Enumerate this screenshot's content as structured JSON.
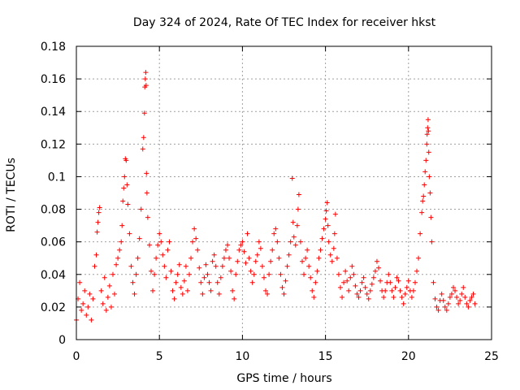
{
  "chart_data": {
    "type": "scatter",
    "title": "Day 324 of 2024, Rate Of TEC Index for receiver hkst",
    "xlabel": "GPS time / hours",
    "ylabel": "ROTI / TECUs",
    "xlim": [
      0,
      25
    ],
    "ylim": [
      0,
      0.18
    ],
    "x_ticks": [
      "0",
      "5",
      "10",
      "15",
      "20",
      "25"
    ],
    "y_ticks": [
      "0",
      "0.02",
      "0.04",
      "0.06",
      "0.08",
      "0.1",
      "0.12",
      "0.14",
      "0.16",
      "0.18"
    ],
    "grid": true,
    "marker": "+",
    "color": "#ff0000",
    "series": [
      {
        "points": [
          [
            0.0,
            0.012
          ],
          [
            0.1,
            0.025
          ],
          [
            0.2,
            0.035
          ],
          [
            0.3,
            0.018
          ],
          [
            0.4,
            0.022
          ],
          [
            0.5,
            0.03
          ],
          [
            0.6,
            0.015
          ],
          [
            0.7,
            0.02
          ],
          [
            0.8,
            0.028
          ],
          [
            0.9,
            0.012
          ],
          [
            1.0,
            0.025
          ],
          [
            1.1,
            0.045
          ],
          [
            1.2,
            0.052
          ],
          [
            1.25,
            0.066
          ],
          [
            1.3,
            0.072
          ],
          [
            1.35,
            0.078
          ],
          [
            1.4,
            0.081
          ],
          [
            1.5,
            0.03
          ],
          [
            1.6,
            0.022
          ],
          [
            1.7,
            0.038
          ],
          [
            1.8,
            0.018
          ],
          [
            1.9,
            0.026
          ],
          [
            2.0,
            0.033
          ],
          [
            2.1,
            0.02
          ],
          [
            2.2,
            0.04
          ],
          [
            2.3,
            0.028
          ],
          [
            2.4,
            0.046
          ],
          [
            2.5,
            0.05
          ],
          [
            2.6,
            0.055
          ],
          [
            2.7,
            0.06
          ],
          [
            2.75,
            0.07
          ],
          [
            2.8,
            0.085
          ],
          [
            2.85,
            0.093
          ],
          [
            2.9,
            0.1
          ],
          [
            2.95,
            0.111
          ],
          [
            3.0,
            0.11
          ],
          [
            3.05,
            0.095
          ],
          [
            3.1,
            0.083
          ],
          [
            3.2,
            0.065
          ],
          [
            3.3,
            0.045
          ],
          [
            3.4,
            0.035
          ],
          [
            3.5,
            0.028
          ],
          [
            3.6,
            0.04
          ],
          [
            3.7,
            0.05
          ],
          [
            3.8,
            0.062
          ],
          [
            3.9,
            0.08
          ],
          [
            4.0,
            0.117
          ],
          [
            4.05,
            0.124
          ],
          [
            4.1,
            0.139
          ],
          [
            4.12,
            0.155
          ],
          [
            4.15,
            0.16
          ],
          [
            4.18,
            0.164
          ],
          [
            4.2,
            0.156
          ],
          [
            4.22,
            0.102
          ],
          [
            4.25,
            0.09
          ],
          [
            4.3,
            0.075
          ],
          [
            4.4,
            0.058
          ],
          [
            4.5,
            0.042
          ],
          [
            4.6,
            0.03
          ],
          [
            4.7,
            0.04
          ],
          [
            4.8,
            0.05
          ],
          [
            4.9,
            0.058
          ],
          [
            5.0,
            0.065
          ],
          [
            5.1,
            0.06
          ],
          [
            5.2,
            0.052
          ],
          [
            5.3,
            0.045
          ],
          [
            5.4,
            0.038
          ],
          [
            5.5,
            0.055
          ],
          [
            5.6,
            0.06
          ],
          [
            5.7,
            0.042
          ],
          [
            5.8,
            0.03
          ],
          [
            5.9,
            0.025
          ],
          [
            6.0,
            0.035
          ],
          [
            6.1,
            0.04
          ],
          [
            6.2,
            0.046
          ],
          [
            6.3,
            0.032
          ],
          [
            6.4,
            0.028
          ],
          [
            6.5,
            0.036
          ],
          [
            6.6,
            0.045
          ],
          [
            6.7,
            0.03
          ],
          [
            6.8,
            0.04
          ],
          [
            6.9,
            0.05
          ],
          [
            7.0,
            0.06
          ],
          [
            7.1,
            0.068
          ],
          [
            7.2,
            0.062
          ],
          [
            7.3,
            0.055
          ],
          [
            7.4,
            0.044
          ],
          [
            7.5,
            0.035
          ],
          [
            7.6,
            0.028
          ],
          [
            7.7,
            0.038
          ],
          [
            7.8,
            0.046
          ],
          [
            7.9,
            0.04
          ],
          [
            8.0,
            0.035
          ],
          [
            8.1,
            0.03
          ],
          [
            8.2,
            0.048
          ],
          [
            8.3,
            0.052
          ],
          [
            8.4,
            0.045
          ],
          [
            8.5,
            0.035
          ],
          [
            8.6,
            0.028
          ],
          [
            8.7,
            0.038
          ],
          [
            8.8,
            0.045
          ],
          [
            8.9,
            0.05
          ],
          [
            9.0,
            0.055
          ],
          [
            9.1,
            0.058
          ],
          [
            9.2,
            0.05
          ],
          [
            9.3,
            0.042
          ],
          [
            9.4,
            0.03
          ],
          [
            9.5,
            0.025
          ],
          [
            9.6,
            0.04
          ],
          [
            9.7,
            0.048
          ],
          [
            9.8,
            0.055
          ],
          [
            9.9,
            0.058
          ],
          [
            10.0,
            0.06
          ],
          [
            10.1,
            0.054
          ],
          [
            10.2,
            0.047
          ],
          [
            10.3,
            0.065
          ],
          [
            10.4,
            0.05
          ],
          [
            10.5,
            0.042
          ],
          [
            10.6,
            0.035
          ],
          [
            10.7,
            0.04
          ],
          [
            10.8,
            0.048
          ],
          [
            10.9,
            0.052
          ],
          [
            11.0,
            0.06
          ],
          [
            11.1,
            0.056
          ],
          [
            11.2,
            0.045
          ],
          [
            11.3,
            0.038
          ],
          [
            11.4,
            0.03
          ],
          [
            11.5,
            0.028
          ],
          [
            11.6,
            0.04
          ],
          [
            11.7,
            0.048
          ],
          [
            11.8,
            0.055
          ],
          [
            11.9,
            0.065
          ],
          [
            12.0,
            0.068
          ],
          [
            12.1,
            0.06
          ],
          [
            12.2,
            0.05
          ],
          [
            12.3,
            0.04
          ],
          [
            12.4,
            0.032
          ],
          [
            12.5,
            0.028
          ],
          [
            12.6,
            0.036
          ],
          [
            12.7,
            0.045
          ],
          [
            12.8,
            0.052
          ],
          [
            12.9,
            0.06
          ],
          [
            13.0,
            0.099
          ],
          [
            13.05,
            0.072
          ],
          [
            13.1,
            0.063
          ],
          [
            13.2,
            0.058
          ],
          [
            13.3,
            0.07
          ],
          [
            13.35,
            0.08
          ],
          [
            13.4,
            0.089
          ],
          [
            13.5,
            0.06
          ],
          [
            13.6,
            0.048
          ],
          [
            13.7,
            0.04
          ],
          [
            13.8,
            0.05
          ],
          [
            13.9,
            0.055
          ],
          [
            14.0,
            0.045
          ],
          [
            14.1,
            0.038
          ],
          [
            14.2,
            0.03
          ],
          [
            14.3,
            0.026
          ],
          [
            14.4,
            0.035
          ],
          [
            14.5,
            0.042
          ],
          [
            14.6,
            0.05
          ],
          [
            14.7,
            0.055
          ],
          [
            14.8,
            0.062
          ],
          [
            14.9,
            0.068
          ],
          [
            15.0,
            0.074
          ],
          [
            15.05,
            0.079
          ],
          [
            15.1,
            0.084
          ],
          [
            15.15,
            0.07
          ],
          [
            15.2,
            0.06
          ],
          [
            15.3,
            0.052
          ],
          [
            15.4,
            0.048
          ],
          [
            15.5,
            0.056
          ],
          [
            15.55,
            0.065
          ],
          [
            15.6,
            0.077
          ],
          [
            15.7,
            0.05
          ],
          [
            15.8,
            0.04
          ],
          [
            15.9,
            0.032
          ],
          [
            16.0,
            0.026
          ],
          [
            16.1,
            0.035
          ],
          [
            16.2,
            0.042
          ],
          [
            16.3,
            0.036
          ],
          [
            16.4,
            0.03
          ],
          [
            16.5,
            0.038
          ],
          [
            16.6,
            0.045
          ],
          [
            16.7,
            0.04
          ],
          [
            16.8,
            0.033
          ],
          [
            16.9,
            0.028
          ],
          [
            17.0,
            0.026
          ],
          [
            17.1,
            0.03
          ],
          [
            17.2,
            0.035
          ],
          [
            17.3,
            0.038
          ],
          [
            17.4,
            0.032
          ],
          [
            17.5,
            0.028
          ],
          [
            17.6,
            0.025
          ],
          [
            17.7,
            0.03
          ],
          [
            17.8,
            0.034
          ],
          [
            17.9,
            0.038
          ],
          [
            18.0,
            0.042
          ],
          [
            18.1,
            0.048
          ],
          [
            18.2,
            0.044
          ],
          [
            18.3,
            0.036
          ],
          [
            18.4,
            0.03
          ],
          [
            18.5,
            0.026
          ],
          [
            18.6,
            0.03
          ],
          [
            18.7,
            0.035
          ],
          [
            18.8,
            0.04
          ],
          [
            18.9,
            0.035
          ],
          [
            19.0,
            0.03
          ],
          [
            19.1,
            0.026
          ],
          [
            19.2,
            0.032
          ],
          [
            19.3,
            0.038
          ],
          [
            19.4,
            0.036
          ],
          [
            19.5,
            0.03
          ],
          [
            19.6,
            0.026
          ],
          [
            19.7,
            0.022
          ],
          [
            19.8,
            0.028
          ],
          [
            19.9,
            0.032
          ],
          [
            20.0,
            0.036
          ],
          [
            20.1,
            0.03
          ],
          [
            20.2,
            0.026
          ],
          [
            20.3,
            0.03
          ],
          [
            20.4,
            0.035
          ],
          [
            20.5,
            0.042
          ],
          [
            20.6,
            0.05
          ],
          [
            20.7,
            0.065
          ],
          [
            20.8,
            0.078
          ],
          [
            20.85,
            0.085
          ],
          [
            20.9,
            0.088
          ],
          [
            20.95,
            0.095
          ],
          [
            21.0,
            0.103
          ],
          [
            21.05,
            0.11
          ],
          [
            21.1,
            0.12
          ],
          [
            21.12,
            0.126
          ],
          [
            21.15,
            0.13
          ],
          [
            21.18,
            0.135
          ],
          [
            21.2,
            0.128
          ],
          [
            21.22,
            0.115
          ],
          [
            21.25,
            0.1
          ],
          [
            21.3,
            0.09
          ],
          [
            21.35,
            0.075
          ],
          [
            21.4,
            0.06
          ],
          [
            21.5,
            0.035
          ],
          [
            21.6,
            0.025
          ],
          [
            21.7,
            0.02
          ],
          [
            21.8,
            0.018
          ],
          [
            21.9,
            0.024
          ],
          [
            22.0,
            0.028
          ],
          [
            22.1,
            0.024
          ],
          [
            22.2,
            0.02
          ],
          [
            22.3,
            0.018
          ],
          [
            22.4,
            0.022
          ],
          [
            22.5,
            0.026
          ],
          [
            22.6,
            0.028
          ],
          [
            22.7,
            0.032
          ],
          [
            22.8,
            0.03
          ],
          [
            22.9,
            0.026
          ],
          [
            23.0,
            0.022
          ],
          [
            23.1,
            0.024
          ],
          [
            23.2,
            0.028
          ],
          [
            23.3,
            0.032
          ],
          [
            23.4,
            0.026
          ],
          [
            23.5,
            0.022
          ],
          [
            23.6,
            0.02
          ],
          [
            23.7,
            0.024
          ],
          [
            23.8,
            0.026
          ],
          [
            23.9,
            0.028
          ],
          [
            24.0,
            0.022
          ]
        ]
      }
    ]
  }
}
